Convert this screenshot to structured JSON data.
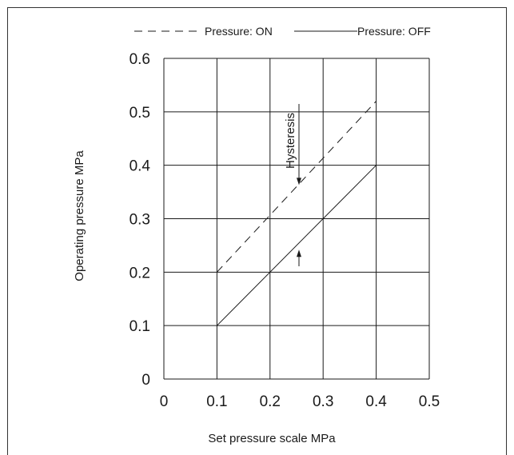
{
  "chart_data": {
    "type": "line",
    "xlabel": "Set pressure scale MPa",
    "ylabel": "Operating pressure MPa",
    "xlim": [
      0,
      0.5
    ],
    "ylim": [
      0,
      0.6
    ],
    "x_ticks": [
      "0",
      "0.1",
      "0.2",
      "0.3",
      "0.4",
      "0.5"
    ],
    "y_ticks": [
      "0",
      "0.1",
      "0.2",
      "0.3",
      "0.4",
      "0.5",
      "0.6"
    ],
    "grid": true,
    "legend_position": "top",
    "series": [
      {
        "name": "Pressure: ON",
        "line_style": "dashed",
        "x": [
          0.1,
          0.4
        ],
        "y": [
          0.2,
          0.52
        ]
      },
      {
        "name": "Pressure: OFF",
        "line_style": "solid",
        "x": [
          0.1,
          0.4
        ],
        "y": [
          0.1,
          0.4
        ]
      }
    ],
    "annotations": [
      {
        "text": "Hysteresis",
        "x": 0.25,
        "y_from": 0.36,
        "y_to": 0.245
      }
    ]
  },
  "colors": {
    "line": "#1a1a1a",
    "grid": "#1a1a1a",
    "background": "#ffffff"
  }
}
